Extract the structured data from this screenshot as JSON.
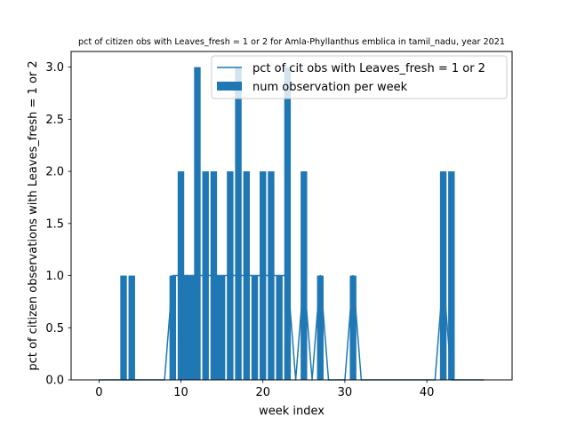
{
  "chart_data": {
    "type": "bar",
    "title": "pct of citizen obs with Leaves_fresh = 1 or 2 for Amla-Phyllanthus emblica in tamil_nadu, year 2021",
    "xlabel": "week index",
    "ylabel": "pct of citizen observations with Leaves_fresh = 1 or 2",
    "xlim": [
      -3.4,
      50.4
    ],
    "ylim": [
      0,
      3.15
    ],
    "xticks": [
      0,
      10,
      20,
      30,
      40
    ],
    "xtick_labels": [
      "0",
      "10",
      "20",
      "30",
      "40"
    ],
    "yticks": [
      0,
      0.5,
      1.0,
      1.5,
      2.0,
      2.5,
      3.0
    ],
    "ytick_labels": [
      "0.0",
      "0.5",
      "1.0",
      "1.5",
      "2.0",
      "2.5",
      "3.0"
    ],
    "grid": false,
    "legend": {
      "placement": "top-right",
      "entries": [
        "pct of cit obs with Leaves_fresh = 1 or 2",
        "num observation per week"
      ]
    },
    "series": [
      {
        "name": "pct of cit obs with Leaves_fresh = 1 or 2",
        "kind": "line",
        "color": "#1f77b4",
        "x": [
          0,
          1,
          2,
          3,
          4,
          5,
          6,
          7,
          8,
          9,
          10,
          11,
          12,
          13,
          14,
          15,
          16,
          17,
          18,
          19,
          20,
          21,
          22,
          23,
          24,
          25,
          26,
          27,
          28,
          29,
          30,
          31,
          32,
          33,
          34,
          35,
          36,
          37,
          38,
          39,
          40,
          41,
          42,
          43,
          44,
          45,
          46,
          47
        ],
        "values": [
          0,
          0,
          0,
          0,
          0,
          0,
          0,
          0,
          0,
          1,
          1,
          1,
          1,
          1,
          1,
          1,
          1,
          1,
          1,
          1,
          1,
          1,
          1,
          1,
          0,
          1,
          0,
          1,
          0,
          0,
          0,
          1,
          0,
          0,
          0,
          0,
          0,
          0,
          0,
          0,
          0,
          0,
          1,
          0,
          0,
          0,
          0,
          0
        ]
      },
      {
        "name": "num observation per week",
        "kind": "bar",
        "color": "#1f77b4",
        "x": [
          3,
          4,
          9,
          10,
          12,
          13,
          14,
          16,
          17,
          18,
          20,
          21,
          23,
          25,
          27,
          31,
          42,
          43
        ],
        "values": [
          1,
          1,
          1,
          2,
          3,
          2,
          2,
          2,
          3,
          2,
          2,
          2,
          3,
          2,
          1,
          1,
          2,
          2
        ],
        "extra_bars": [
          {
            "x": 10.5,
            "value": 1
          },
          {
            "x": 11,
            "value": 1
          },
          {
            "x": 11.5,
            "value": 1
          },
          {
            "x": 14.5,
            "value": 1
          },
          {
            "x": 15,
            "value": 1
          },
          {
            "x": 19,
            "value": 1
          },
          {
            "x": 22,
            "value": 1
          }
        ]
      }
    ]
  }
}
